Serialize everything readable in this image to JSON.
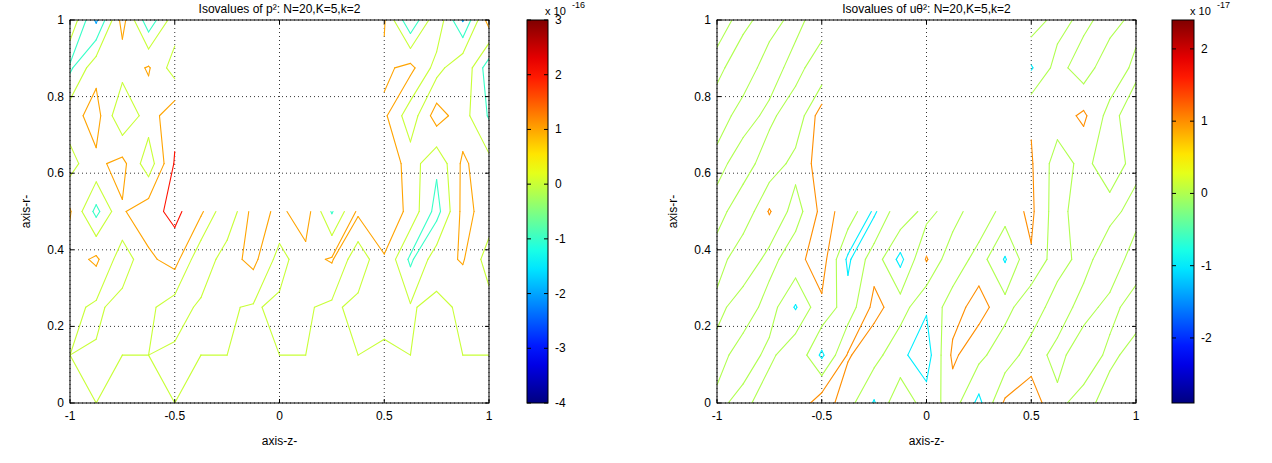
{
  "chart_data": [
    {
      "type": "contour",
      "title": "Isovalues of p²: N=20,K=5,k=2",
      "x_label": "axis-z-",
      "y_label": "axis-r-",
      "xlim": [
        -1,
        1
      ],
      "ylim": [
        0,
        1
      ],
      "xticks": [
        -1,
        -0.5,
        0,
        0.5,
        1
      ],
      "yticks": [
        0,
        0.2,
        0.4,
        0.6,
        0.8,
        1
      ],
      "grid": true,
      "x": [
        -1,
        -0.875,
        -0.75,
        -0.625,
        -0.5,
        -0.375,
        -0.25,
        -0.125,
        0,
        0.125,
        0.25,
        0.375,
        0.5,
        0.625,
        0.75,
        0.875,
        1
      ],
      "y": [
        0,
        0.125,
        0.25,
        0.375,
        0.5,
        0.625,
        0.75,
        0.875,
        1
      ],
      "cells": [
        [
          0,
          0,
          0,
          0,
          0,
          0,
          0,
          0,
          0,
          0,
          0,
          0,
          0,
          0,
          0,
          0,
          0
        ],
        [
          0,
          0.1,
          0,
          0,
          0.2,
          0,
          0,
          0,
          0,
          0,
          0,
          0,
          -0.1,
          0,
          0,
          0,
          0
        ],
        [
          0.3,
          -0.2,
          0.4,
          0.2,
          -0.5,
          0.2,
          0.1,
          -0.1,
          0.2,
          0.1,
          -0.2,
          0.3,
          0.2,
          0.1,
          -0.3,
          0.2,
          0.4
        ],
        [
          0.5,
          1.2,
          -0.6,
          0.8,
          1.4,
          -0.8,
          0.6,
          1.3,
          -0.4,
          0.7,
          1.1,
          -0.7,
          0.9,
          -1.2,
          0.6,
          1.1,
          -0.5
        ],
        [
          1.1,
          -1.3,
          0.9,
          1.6,
          2.3,
          1.2,
          -0.9,
          1.4,
          0.8,
          1.5,
          -1.1,
          1.2,
          1.8,
          0.7,
          -1.4,
          1.3,
          0.6
        ],
        [
          -0.4,
          0.8,
          1.3,
          -0.6,
          2.1,
          null,
          null,
          null,
          null,
          null,
          null,
          null,
          1.9,
          0.5,
          -0.8,
          1.2,
          0.3
        ],
        [
          0.6,
          1.4,
          -0.9,
          0.5,
          1.7,
          null,
          null,
          null,
          null,
          null,
          null,
          null,
          1.2,
          -0.6,
          1.5,
          0.4,
          -1.1
        ],
        [
          -1.2,
          0.7,
          0.4,
          1.1,
          -0.5,
          null,
          null,
          null,
          null,
          null,
          null,
          null,
          0.8,
          1.3,
          -0.4,
          0.9,
          -1.6
        ],
        [
          0.9,
          -2.2,
          1.4,
          -1.7,
          0.6,
          null,
          null,
          null,
          null,
          null,
          null,
          null,
          1.1,
          -1.9,
          0.8,
          -2.1,
          1.5
        ]
      ],
      "levels": [
        -3,
        -2,
        -1,
        0,
        1,
        2
      ],
      "colorbar": {
        "range": [
          -4,
          3
        ],
        "ticks": [
          -4,
          -3,
          -2,
          -1,
          0,
          1,
          2,
          3
        ],
        "multiplier": "x 10",
        "exponent": "-16"
      }
    },
    {
      "type": "contour",
      "title": "Isovalues of uθ²: N=20,K=5,k=2",
      "x_label": "axis-z-",
      "y_label": "axis-r-",
      "xlim": [
        -1,
        1
      ],
      "ylim": [
        0,
        1
      ],
      "xticks": [
        -1,
        -0.5,
        0,
        0.5,
        1
      ],
      "yticks": [
        0,
        0.2,
        0.4,
        0.6,
        0.8,
        1
      ],
      "grid": true,
      "x": [
        -1,
        -0.875,
        -0.75,
        -0.625,
        -0.5,
        -0.375,
        -0.25,
        -0.125,
        0,
        0.125,
        0.25,
        0.375,
        0.5,
        0.625,
        0.75,
        0.875,
        1
      ],
      "y": [
        0,
        0.125,
        0.25,
        0.375,
        0.5,
        0.625,
        0.75,
        0.875,
        1
      ],
      "cells": [
        [
          0.3,
          -0.4,
          0.8,
          0.2,
          1.6,
          0.4,
          -1.1,
          0.9,
          -0.6,
          0.5,
          -1.3,
          1.2,
          1.5,
          0.3,
          -0.5,
          0.6,
          0.2
        ],
        [
          -0.5,
          0.6,
          -0.3,
          0.9,
          -1.2,
          1.1,
          0.4,
          -0.8,
          -1.5,
          1.2,
          0.3,
          -0.7,
          0.6,
          -0.4,
          0.8,
          -0.3,
          0.5
        ],
        [
          0.4,
          -0.7,
          0.5,
          -1.1,
          0.8,
          -0.6,
          1.3,
          0.5,
          -0.9,
          0.6,
          1.4,
          0.4,
          -0.8,
          0.7,
          -0.5,
          0.4,
          -0.6
        ],
        [
          -0.6,
          0.9,
          -0.4,
          0.7,
          1.5,
          -1.2,
          0.6,
          -1.3,
          1.1,
          -0.8,
          0.5,
          -1.1,
          0.9,
          -0.6,
          0.5,
          -0.9,
          0.7
        ],
        [
          0.5,
          -0.8,
          1.1,
          -0.5,
          1.3,
          0.7,
          -1.2,
          0.8,
          -0.4,
          0.6,
          -0.9,
          0.5,
          1.2,
          -0.6,
          0.9,
          0.4,
          -0.5
        ],
        [
          -0.4,
          0.6,
          -0.7,
          0.4,
          1.4,
          null,
          null,
          null,
          null,
          null,
          null,
          null,
          1.1,
          -0.5,
          0.3,
          -0.6,
          0.4
        ],
        [
          0.6,
          -0.5,
          0.3,
          -0.8,
          1.6,
          null,
          null,
          null,
          null,
          null,
          null,
          null,
          0.9,
          0.5,
          1.2,
          -0.4,
          0.7
        ],
        [
          -0.3,
          0.7,
          -0.6,
          0.5,
          -0.9,
          null,
          null,
          null,
          null,
          null,
          null,
          null,
          -1.1,
          0.4,
          -0.6,
          0.8,
          -0.3
        ],
        [
          0.4,
          -0.3,
          0.5,
          -0.4,
          0.7,
          null,
          null,
          null,
          null,
          null,
          null,
          null,
          0.6,
          -0.4,
          0.3,
          -0.5,
          0.4
        ]
      ],
      "levels": [
        -2,
        -1,
        0,
        1
      ],
      "colorbar": {
        "range": [
          -2.9,
          2.4
        ],
        "ticks": [
          -2,
          -1,
          0,
          1,
          2
        ],
        "multiplier": "x 10",
        "exponent": "-17"
      }
    }
  ]
}
